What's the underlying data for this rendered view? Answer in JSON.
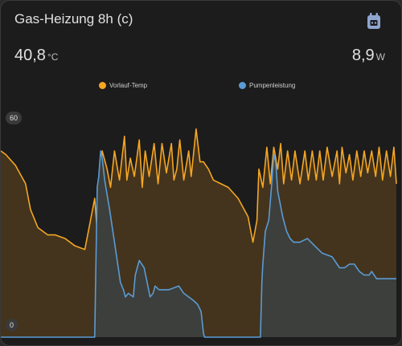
{
  "card": {
    "title": "Gas-Heizung 8h (c)",
    "icon": "calendar-clipboard-icon",
    "accent": "#8fa6cf"
  },
  "current": {
    "temp_value": "40,8",
    "temp_unit": "°C",
    "power_value": "8,9",
    "power_unit": "W"
  },
  "chart_data": {
    "type": "area",
    "title": "",
    "xlabel": "",
    "ylabel": "",
    "ylim": [
      0,
      60
    ],
    "ytick_labels": [
      "60",
      "0"
    ],
    "grid": false,
    "legend_position": "top-center",
    "x_range": [
      0,
      8
    ],
    "series": [
      {
        "name": "Vorlauf-Temp",
        "color": "#f5a623",
        "fill": "#44341d",
        "x": [
          0,
          0.1,
          0.3,
          0.5,
          0.6,
          0.75,
          0.85,
          0.95,
          1.1,
          1.3,
          1.5,
          1.7,
          1.8,
          1.9,
          1.95,
          2.05,
          2.15,
          2.22,
          2.3,
          2.4,
          2.5,
          2.55,
          2.62,
          2.7,
          2.8,
          2.86,
          2.92,
          3.0,
          3.1,
          3.18,
          3.26,
          3.35,
          3.45,
          3.5,
          3.56,
          3.62,
          3.7,
          3.8,
          3.85,
          3.95,
          4.03,
          4.1,
          4.2,
          4.3,
          4.45,
          4.6,
          4.8,
          5.0,
          5.1,
          5.18,
          5.22,
          5.3,
          5.38,
          5.45,
          5.52,
          5.6,
          5.66,
          5.72,
          5.8,
          5.88,
          5.95,
          6.05,
          6.15,
          6.22,
          6.3,
          6.38,
          6.45,
          6.52,
          6.6,
          6.7,
          6.8,
          6.85,
          6.9,
          6.98,
          7.05,
          7.12,
          7.2,
          7.28,
          7.35,
          7.42,
          7.5,
          7.58,
          7.65,
          7.72,
          7.8,
          7.88,
          7.95,
          8.0
        ],
        "values": [
          51,
          50,
          47,
          42,
          35,
          30,
          29,
          28,
          28,
          27,
          25,
          24,
          31,
          38,
          29,
          51,
          46,
          41,
          51,
          43,
          55,
          43,
          49,
          44,
          54,
          41,
          51,
          44,
          53,
          42,
          53,
          45,
          53,
          43,
          46,
          54,
          43,
          51,
          44,
          57,
          48,
          48,
          46,
          43,
          42,
          41,
          38,
          33,
          26,
          32,
          46,
          41,
          52,
          42,
          52,
          46,
          53,
          42,
          51,
          43,
          51,
          42,
          51,
          43,
          51,
          43,
          51,
          43,
          52,
          44,
          51,
          42,
          52,
          45,
          50,
          43,
          51,
          44,
          51,
          45,
          51,
          44,
          52,
          43,
          51,
          44,
          52,
          42
        ]
      },
      {
        "name": "Pumpenleistung",
        "color": "#5b9bd5",
        "fill": "#3c3f3c",
        "x": [
          0,
          1.9,
          1.95,
          1.98,
          2.02,
          2.05,
          2.1,
          2.15,
          2.2,
          2.3,
          2.42,
          2.48,
          2.52,
          2.58,
          2.68,
          2.72,
          2.8,
          2.9,
          2.96,
          3.02,
          3.08,
          3.12,
          3.2,
          3.4,
          3.6,
          3.7,
          3.8,
          3.9,
          3.98,
          4.05,
          4.1,
          4.12,
          5.0,
          5.25,
          5.28,
          5.3,
          5.35,
          5.42,
          5.48,
          5.52,
          5.56,
          5.6,
          5.7,
          5.78,
          5.85,
          5.92,
          6.05,
          6.2,
          6.35,
          6.5,
          6.7,
          6.8,
          6.85,
          6.95,
          7.05,
          7.15,
          7.25,
          7.35,
          7.45,
          7.5,
          7.6,
          8.0
        ],
        "values": [
          0,
          0,
          41,
          44,
          51,
          49,
          43,
          39,
          35,
          26,
          15,
          13,
          11,
          12,
          11,
          17,
          21,
          19,
          15,
          11,
          12,
          14,
          13,
          13,
          14,
          12,
          11,
          10,
          9,
          7,
          1,
          0,
          0,
          0,
          15,
          20,
          29,
          32,
          42,
          50,
          48,
          40,
          33,
          29,
          27,
          26,
          26,
          27,
          25,
          23,
          22,
          20,
          19,
          19,
          20,
          20,
          18,
          17,
          17,
          18,
          16,
          16
        ]
      }
    ]
  }
}
